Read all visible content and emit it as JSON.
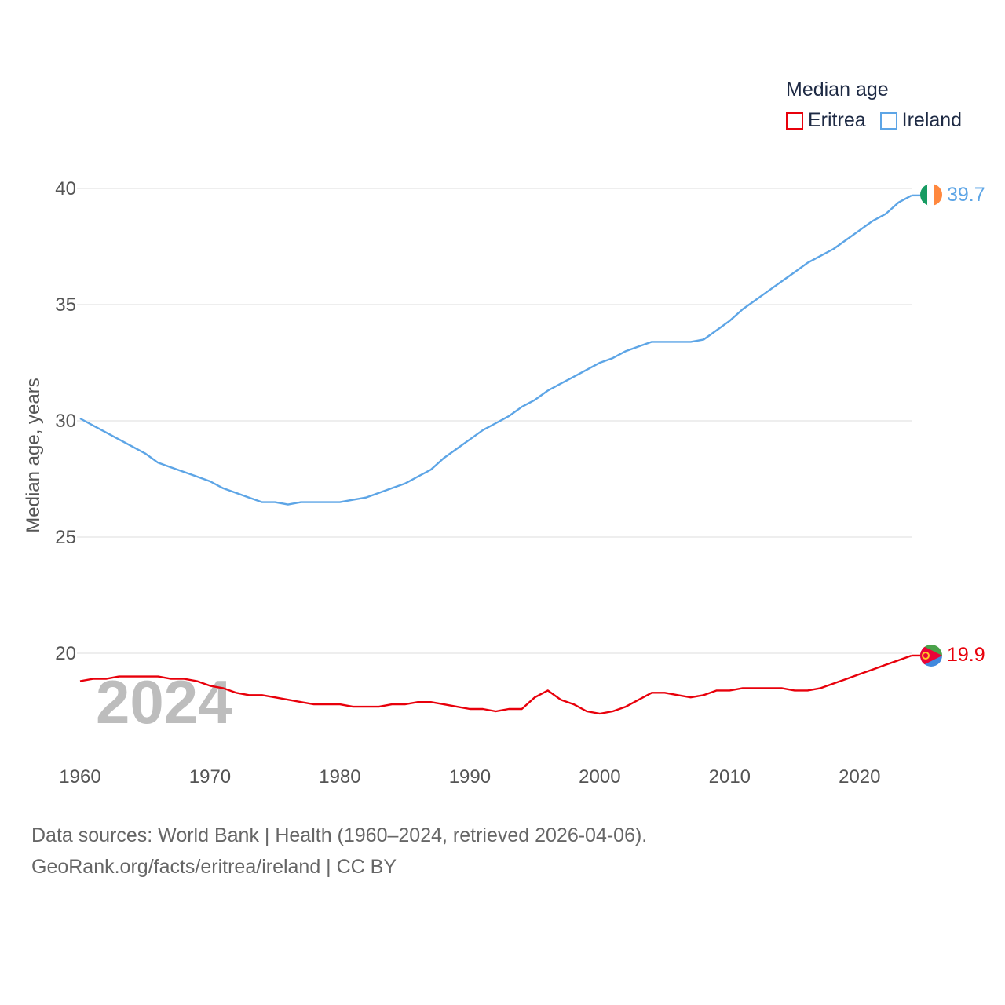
{
  "chart_data": {
    "type": "line",
    "title": "Median age",
    "ylabel": "Median age, years",
    "xlabel": "",
    "year_label": "2024",
    "ylim": [
      14.6,
      41.2
    ],
    "xlim": [
      1960,
      2024
    ],
    "yticks": [
      20,
      25,
      30,
      35,
      40
    ],
    "xticks": [
      1960,
      1970,
      1980,
      1990,
      2000,
      2010,
      2020
    ],
    "grid": true,
    "legend_placement": "top-right",
    "series": [
      {
        "name": "Eritrea",
        "color": "#e8000b",
        "end_label": "19.9",
        "x": [
          1960,
          1961,
          1962,
          1963,
          1964,
          1965,
          1966,
          1967,
          1968,
          1969,
          1970,
          1971,
          1972,
          1973,
          1974,
          1975,
          1976,
          1977,
          1978,
          1979,
          1980,
          1981,
          1982,
          1983,
          1984,
          1985,
          1986,
          1987,
          1988,
          1989,
          1990,
          1991,
          1992,
          1993,
          1994,
          1995,
          1996,
          1997,
          1998,
          1999,
          2000,
          2001,
          2002,
          2003,
          2004,
          2005,
          2006,
          2007,
          2008,
          2009,
          2010,
          2011,
          2012,
          2013,
          2014,
          2015,
          2016,
          2017,
          2018,
          2019,
          2020,
          2021,
          2022,
          2023,
          2024
        ],
        "values": [
          18.8,
          18.9,
          18.9,
          19.0,
          19.0,
          19.0,
          19.0,
          18.9,
          18.9,
          18.8,
          18.6,
          18.5,
          18.3,
          18.2,
          18.2,
          18.1,
          18.0,
          17.9,
          17.8,
          17.8,
          17.8,
          17.7,
          17.7,
          17.7,
          17.8,
          17.8,
          17.9,
          17.9,
          17.8,
          17.7,
          17.6,
          17.6,
          17.5,
          17.6,
          17.6,
          18.1,
          18.4,
          18.0,
          17.8,
          17.5,
          17.4,
          17.5,
          17.7,
          18.0,
          18.3,
          18.3,
          18.2,
          18.1,
          18.2,
          18.4,
          18.4,
          18.5,
          18.5,
          18.5,
          18.5,
          18.4,
          18.4,
          18.5,
          18.7,
          18.9,
          19.1,
          19.3,
          19.5,
          19.7,
          19.9
        ]
      },
      {
        "name": "Ireland",
        "color": "#5da5e6",
        "end_label": "39.7",
        "x": [
          1960,
          1961,
          1962,
          1963,
          1964,
          1965,
          1966,
          1967,
          1968,
          1969,
          1970,
          1971,
          1972,
          1973,
          1974,
          1975,
          1976,
          1977,
          1978,
          1979,
          1980,
          1981,
          1982,
          1983,
          1984,
          1985,
          1986,
          1987,
          1988,
          1989,
          1990,
          1991,
          1992,
          1993,
          1994,
          1995,
          1996,
          1997,
          1998,
          1999,
          2000,
          2001,
          2002,
          2003,
          2004,
          2005,
          2006,
          2007,
          2008,
          2009,
          2010,
          2011,
          2012,
          2013,
          2014,
          2015,
          2016,
          2017,
          2018,
          2019,
          2020,
          2021,
          2022,
          2023,
          2024
        ],
        "values": [
          30.1,
          29.8,
          29.5,
          29.2,
          28.9,
          28.6,
          28.2,
          28.0,
          27.8,
          27.6,
          27.4,
          27.1,
          26.9,
          26.7,
          26.5,
          26.5,
          26.4,
          26.5,
          26.5,
          26.5,
          26.5,
          26.6,
          26.7,
          26.9,
          27.1,
          27.3,
          27.6,
          27.9,
          28.4,
          28.8,
          29.2,
          29.6,
          29.9,
          30.2,
          30.6,
          30.9,
          31.3,
          31.6,
          31.9,
          32.2,
          32.5,
          32.7,
          33.0,
          33.2,
          33.4,
          33.4,
          33.4,
          33.4,
          33.5,
          33.9,
          34.3,
          34.8,
          35.2,
          35.6,
          36.0,
          36.4,
          36.8,
          37.1,
          37.4,
          37.8,
          38.2,
          38.6,
          38.9,
          39.4,
          39.7
        ]
      }
    ]
  },
  "footer": {
    "line1": "Data sources: World Bank | Health (1960–2024, retrieved 2026-04-06).",
    "line2": "GeoRank.org/facts/eritrea/ireland | CC BY"
  }
}
